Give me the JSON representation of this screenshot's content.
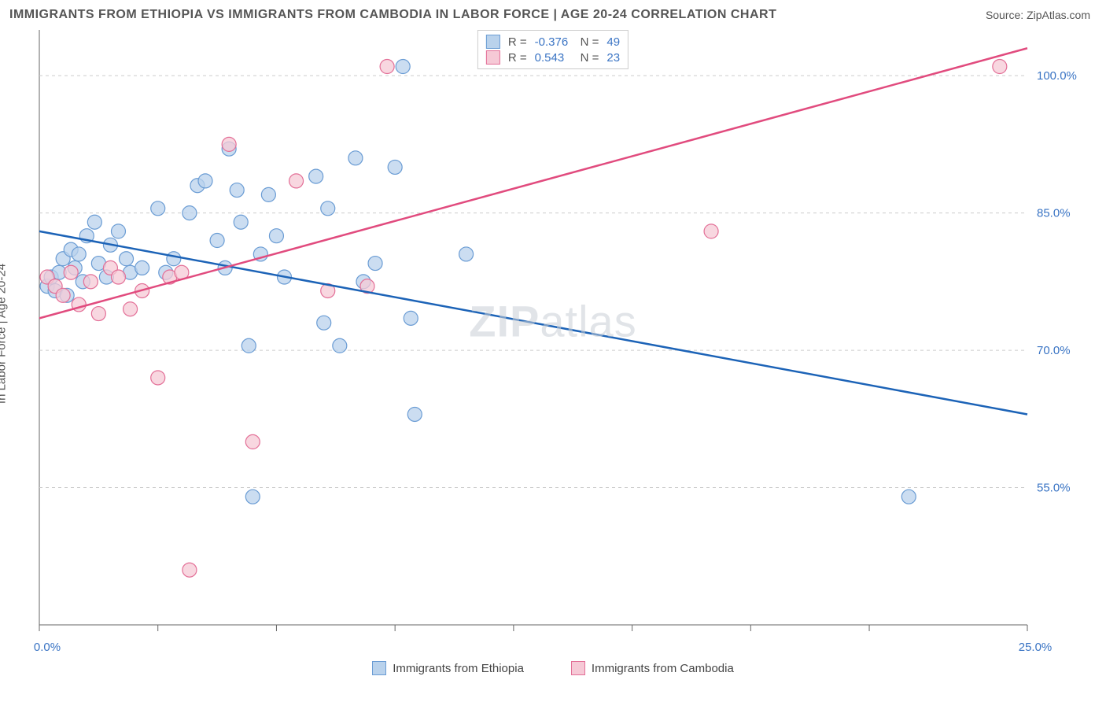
{
  "title": "IMMIGRANTS FROM ETHIOPIA VS IMMIGRANTS FROM CAMBODIA IN LABOR FORCE | AGE 20-24 CORRELATION CHART",
  "source": "Source: ZipAtlas.com",
  "watermark": "ZIPatlas",
  "ylabel": "In Labor Force | Age 20-24",
  "chart": {
    "type": "scatter",
    "background_color": "#ffffff",
    "grid_color": "#cccccc",
    "axis_color": "#666666",
    "tick_label_color": "#3a74c4",
    "xlim": [
      0,
      25
    ],
    "ylim": [
      40,
      105
    ],
    "xticks": [
      0,
      3.0,
      6.0,
      9.0,
      12.0,
      15.0,
      18.0,
      21.0,
      25.0
    ],
    "xticklabels_shown": {
      "0": "0.0%",
      "25": "25.0%"
    },
    "yticks": [
      55,
      70,
      85,
      100
    ],
    "yticklabels": [
      "55.0%",
      "70.0%",
      "85.0%",
      "100.0%"
    ],
    "marker_radius": 9,
    "marker_stroke_width": 1.2,
    "line_width": 2.5,
    "series": [
      {
        "name": "Immigrants from Ethiopia",
        "fill": "#b9d2ec",
        "stroke": "#6a9cd4",
        "line_color": "#1c63b7",
        "R": "-0.376",
        "N": "49",
        "trend": {
          "x1": 0,
          "y1": 83,
          "x2": 25,
          "y2": 63
        },
        "points": [
          [
            0.2,
            77
          ],
          [
            0.3,
            78
          ],
          [
            0.4,
            76.5
          ],
          [
            0.5,
            78.5
          ],
          [
            0.6,
            80
          ],
          [
            0.7,
            76
          ],
          [
            0.8,
            81
          ],
          [
            0.9,
            79
          ],
          [
            1.0,
            80.5
          ],
          [
            1.1,
            77.5
          ],
          [
            1.2,
            82.5
          ],
          [
            1.4,
            84
          ],
          [
            1.5,
            79.5
          ],
          [
            1.7,
            78
          ],
          [
            1.8,
            81.5
          ],
          [
            2.0,
            83
          ],
          [
            2.2,
            80
          ],
          [
            2.3,
            78.5
          ],
          [
            2.6,
            79
          ],
          [
            3.0,
            85.5
          ],
          [
            3.2,
            78.5
          ],
          [
            3.4,
            80
          ],
          [
            3.8,
            85
          ],
          [
            4.0,
            88
          ],
          [
            4.2,
            88.5
          ],
          [
            4.5,
            82
          ],
          [
            4.7,
            79
          ],
          [
            4.8,
            92
          ],
          [
            5.0,
            87.5
          ],
          [
            5.1,
            84
          ],
          [
            5.3,
            70.5
          ],
          [
            5.4,
            54
          ],
          [
            5.6,
            80.5
          ],
          [
            5.8,
            87
          ],
          [
            6.0,
            82.5
          ],
          [
            6.2,
            78
          ],
          [
            7.0,
            89
          ],
          [
            7.2,
            73
          ],
          [
            7.3,
            85.5
          ],
          [
            7.6,
            70.5
          ],
          [
            8.0,
            91
          ],
          [
            8.2,
            77.5
          ],
          [
            8.5,
            79.5
          ],
          [
            9.0,
            90
          ],
          [
            9.4,
            73.5
          ],
          [
            9.5,
            63
          ],
          [
            10.8,
            80.5
          ],
          [
            22.0,
            54
          ],
          [
            9.2,
            101
          ]
        ]
      },
      {
        "name": "Immigrants from Cambodia",
        "fill": "#f6c9d6",
        "stroke": "#e36f97",
        "line_color": "#e14b7e",
        "R": "0.543",
        "N": "23",
        "trend": {
          "x1": 0,
          "y1": 73.5,
          "x2": 25,
          "y2": 103
        },
        "points": [
          [
            0.2,
            78
          ],
          [
            0.4,
            77
          ],
          [
            0.6,
            76
          ],
          [
            0.8,
            78.5
          ],
          [
            1.0,
            75
          ],
          [
            1.3,
            77.5
          ],
          [
            1.5,
            74
          ],
          [
            1.8,
            79
          ],
          [
            2.0,
            78
          ],
          [
            2.3,
            74.5
          ],
          [
            2.6,
            76.5
          ],
          [
            3.0,
            67
          ],
          [
            3.3,
            78
          ],
          [
            3.6,
            78.5
          ],
          [
            3.8,
            46
          ],
          [
            4.8,
            92.5
          ],
          [
            5.4,
            60
          ],
          [
            6.5,
            88.5
          ],
          [
            7.3,
            76.5
          ],
          [
            8.3,
            77
          ],
          [
            8.8,
            101
          ],
          [
            17.0,
            83
          ],
          [
            24.3,
            101
          ]
        ]
      }
    ],
    "legend": {
      "position": "top-center",
      "labels": [
        "Immigrants from Ethiopia",
        "Immigrants from Cambodia"
      ]
    }
  }
}
